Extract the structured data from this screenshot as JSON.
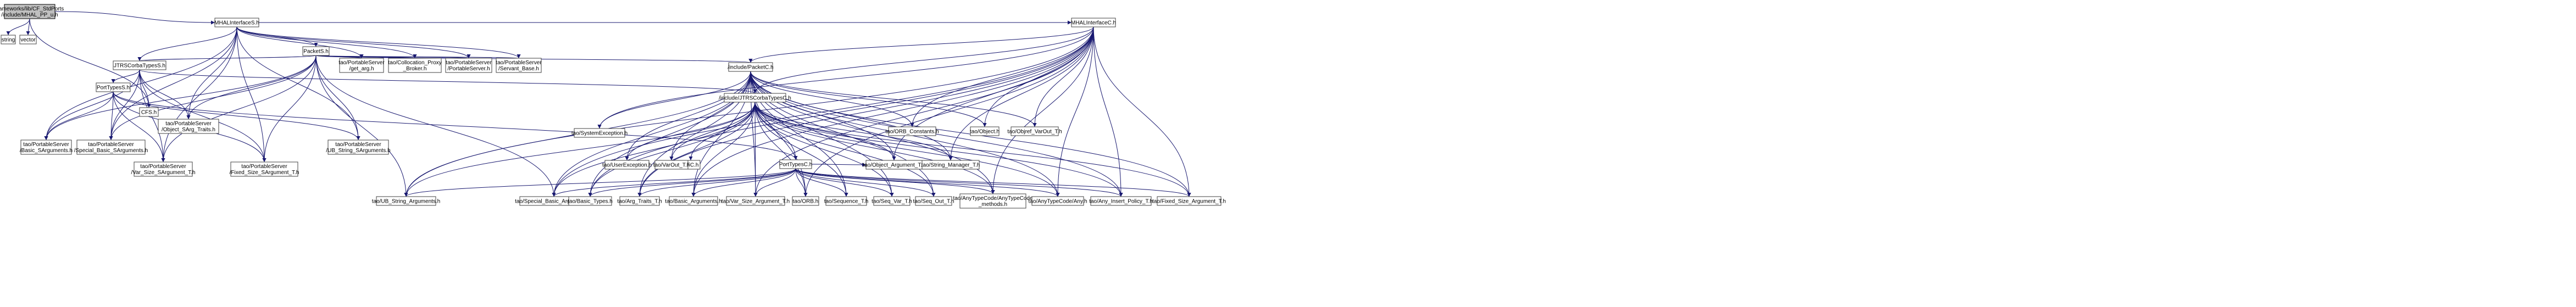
{
  "graph": {
    "nodes": [
      {
        "id": "root",
        "lines": [
          "frameworks/lib/CF_StdPorts",
          "/include/MHAL_PP_u.h"
        ],
        "root": true
      },
      {
        "id": "string",
        "lines": [
          "string"
        ]
      },
      {
        "id": "vector",
        "lines": [
          "vector"
        ]
      },
      {
        "id": "mhalS",
        "lines": [
          "MHALInterfaceS.h"
        ]
      },
      {
        "id": "mhalC",
        "lines": [
          "MHALInterfaceC.h"
        ]
      },
      {
        "id": "cfsh",
        "lines": [
          "CFS.h"
        ]
      },
      {
        "id": "packetS",
        "lines": [
          "PacketS.h"
        ]
      },
      {
        "id": "jtrsS",
        "lines": [
          "JTRSCorbaTypesS.h"
        ]
      },
      {
        "id": "portS",
        "lines": [
          "PortTypesS.h"
        ]
      },
      {
        "id": "getarg",
        "lines": [
          "tao/PortableServer",
          "/get_arg.h"
        ]
      },
      {
        "id": "collocation",
        "lines": [
          "tao/Collocation_Proxy",
          "_Broker.h"
        ]
      },
      {
        "id": "portableserver",
        "lines": [
          "tao/PortableServer",
          "/PortableServer.h"
        ]
      },
      {
        "id": "servantbase",
        "lines": [
          "tao/PortableServer",
          "/Servant_Base.h"
        ]
      },
      {
        "id": "objectsarg",
        "lines": [
          "tao/PortableServer",
          "/Object_SArg_Traits.h"
        ]
      },
      {
        "id": "basicsarg",
        "lines": [
          "tao/PortableServer",
          "/Basic_SArguments.h"
        ]
      },
      {
        "id": "specialsarg",
        "lines": [
          "tao/PortableServer",
          "/Special_Basic_SArguments.h"
        ]
      },
      {
        "id": "varsizesarg",
        "lines": [
          "tao/PortableServer",
          "/Var_Size_SArgument_T.h"
        ]
      },
      {
        "id": "fixedsizesarg",
        "lines": [
          "tao/PortableServer",
          "/Fixed_Size_SArgument_T.h"
        ]
      },
      {
        "id": "ubstringsarg",
        "lines": [
          "tao/PortableServer",
          "/UB_String_SArguments.h"
        ]
      },
      {
        "id": "packetC",
        "lines": [
          "/include/PacketC.h"
        ]
      },
      {
        "id": "jtrsC",
        "lines": [
          "/include/JTRSCorbaTypesC.h"
        ]
      },
      {
        "id": "portC",
        "lines": [
          "PortTypesC.h"
        ]
      },
      {
        "id": "cfch",
        "lines": [
          "CFC.h"
        ]
      },
      {
        "id": "sysexc",
        "lines": [
          "tao/SystemException.h"
        ]
      },
      {
        "id": "userexc",
        "lines": [
          "tao/UserException.h"
        ]
      },
      {
        "id": "varout",
        "lines": [
          "tao/VarOut_T.h"
        ]
      },
      {
        "id": "orbconst",
        "lines": [
          "tao/ORB_Constants.h"
        ]
      },
      {
        "id": "objecth",
        "lines": [
          "tao/Object.h"
        ]
      },
      {
        "id": "objrefvarout",
        "lines": [
          "tao/Objref_VarOut_T.h"
        ]
      },
      {
        "id": "objectarg",
        "lines": [
          "tao/Object_Argument_T.h"
        ]
      },
      {
        "id": "stringmgr",
        "lines": [
          "tao/String_Manager_T.h"
        ]
      },
      {
        "id": "ubstringargs",
        "lines": [
          "tao/UB_String_Arguments.h"
        ]
      },
      {
        "id": "specialbasic",
        "lines": [
          "tao/Special_Basic_Arguments.h"
        ]
      },
      {
        "id": "basictypes",
        "lines": [
          "tao/Basic_Types.h"
        ]
      },
      {
        "id": "argtraits",
        "lines": [
          "tao/Arg_Traits_T.h"
        ]
      },
      {
        "id": "basicargs",
        "lines": [
          "tao/Basic_Arguments.h"
        ]
      },
      {
        "id": "varsizearg",
        "lines": [
          "tao/Var_Size_Argument_T.h"
        ]
      },
      {
        "id": "orbh",
        "lines": [
          "tao/ORB.h"
        ]
      },
      {
        "id": "sequence",
        "lines": [
          "tao/Sequence_T.h"
        ]
      },
      {
        "id": "seqvar",
        "lines": [
          "tao/Seq_Var_T.h"
        ]
      },
      {
        "id": "seqout",
        "lines": [
          "tao/Seq_Out_T.h"
        ]
      },
      {
        "id": "anytypecode",
        "lines": [
          "tao/AnyTypeCode/AnyTypeCode",
          "_methods.h"
        ]
      },
      {
        "id": "anytcany",
        "lines": [
          "tao/AnyTypeCode/Any.h"
        ]
      },
      {
        "id": "anyinsert",
        "lines": [
          "tao/Any_Insert_Policy_T.h"
        ]
      },
      {
        "id": "fixedsizearg",
        "lines": [
          "tao/Fixed_Size_Argument_T.h"
        ]
      }
    ]
  }
}
